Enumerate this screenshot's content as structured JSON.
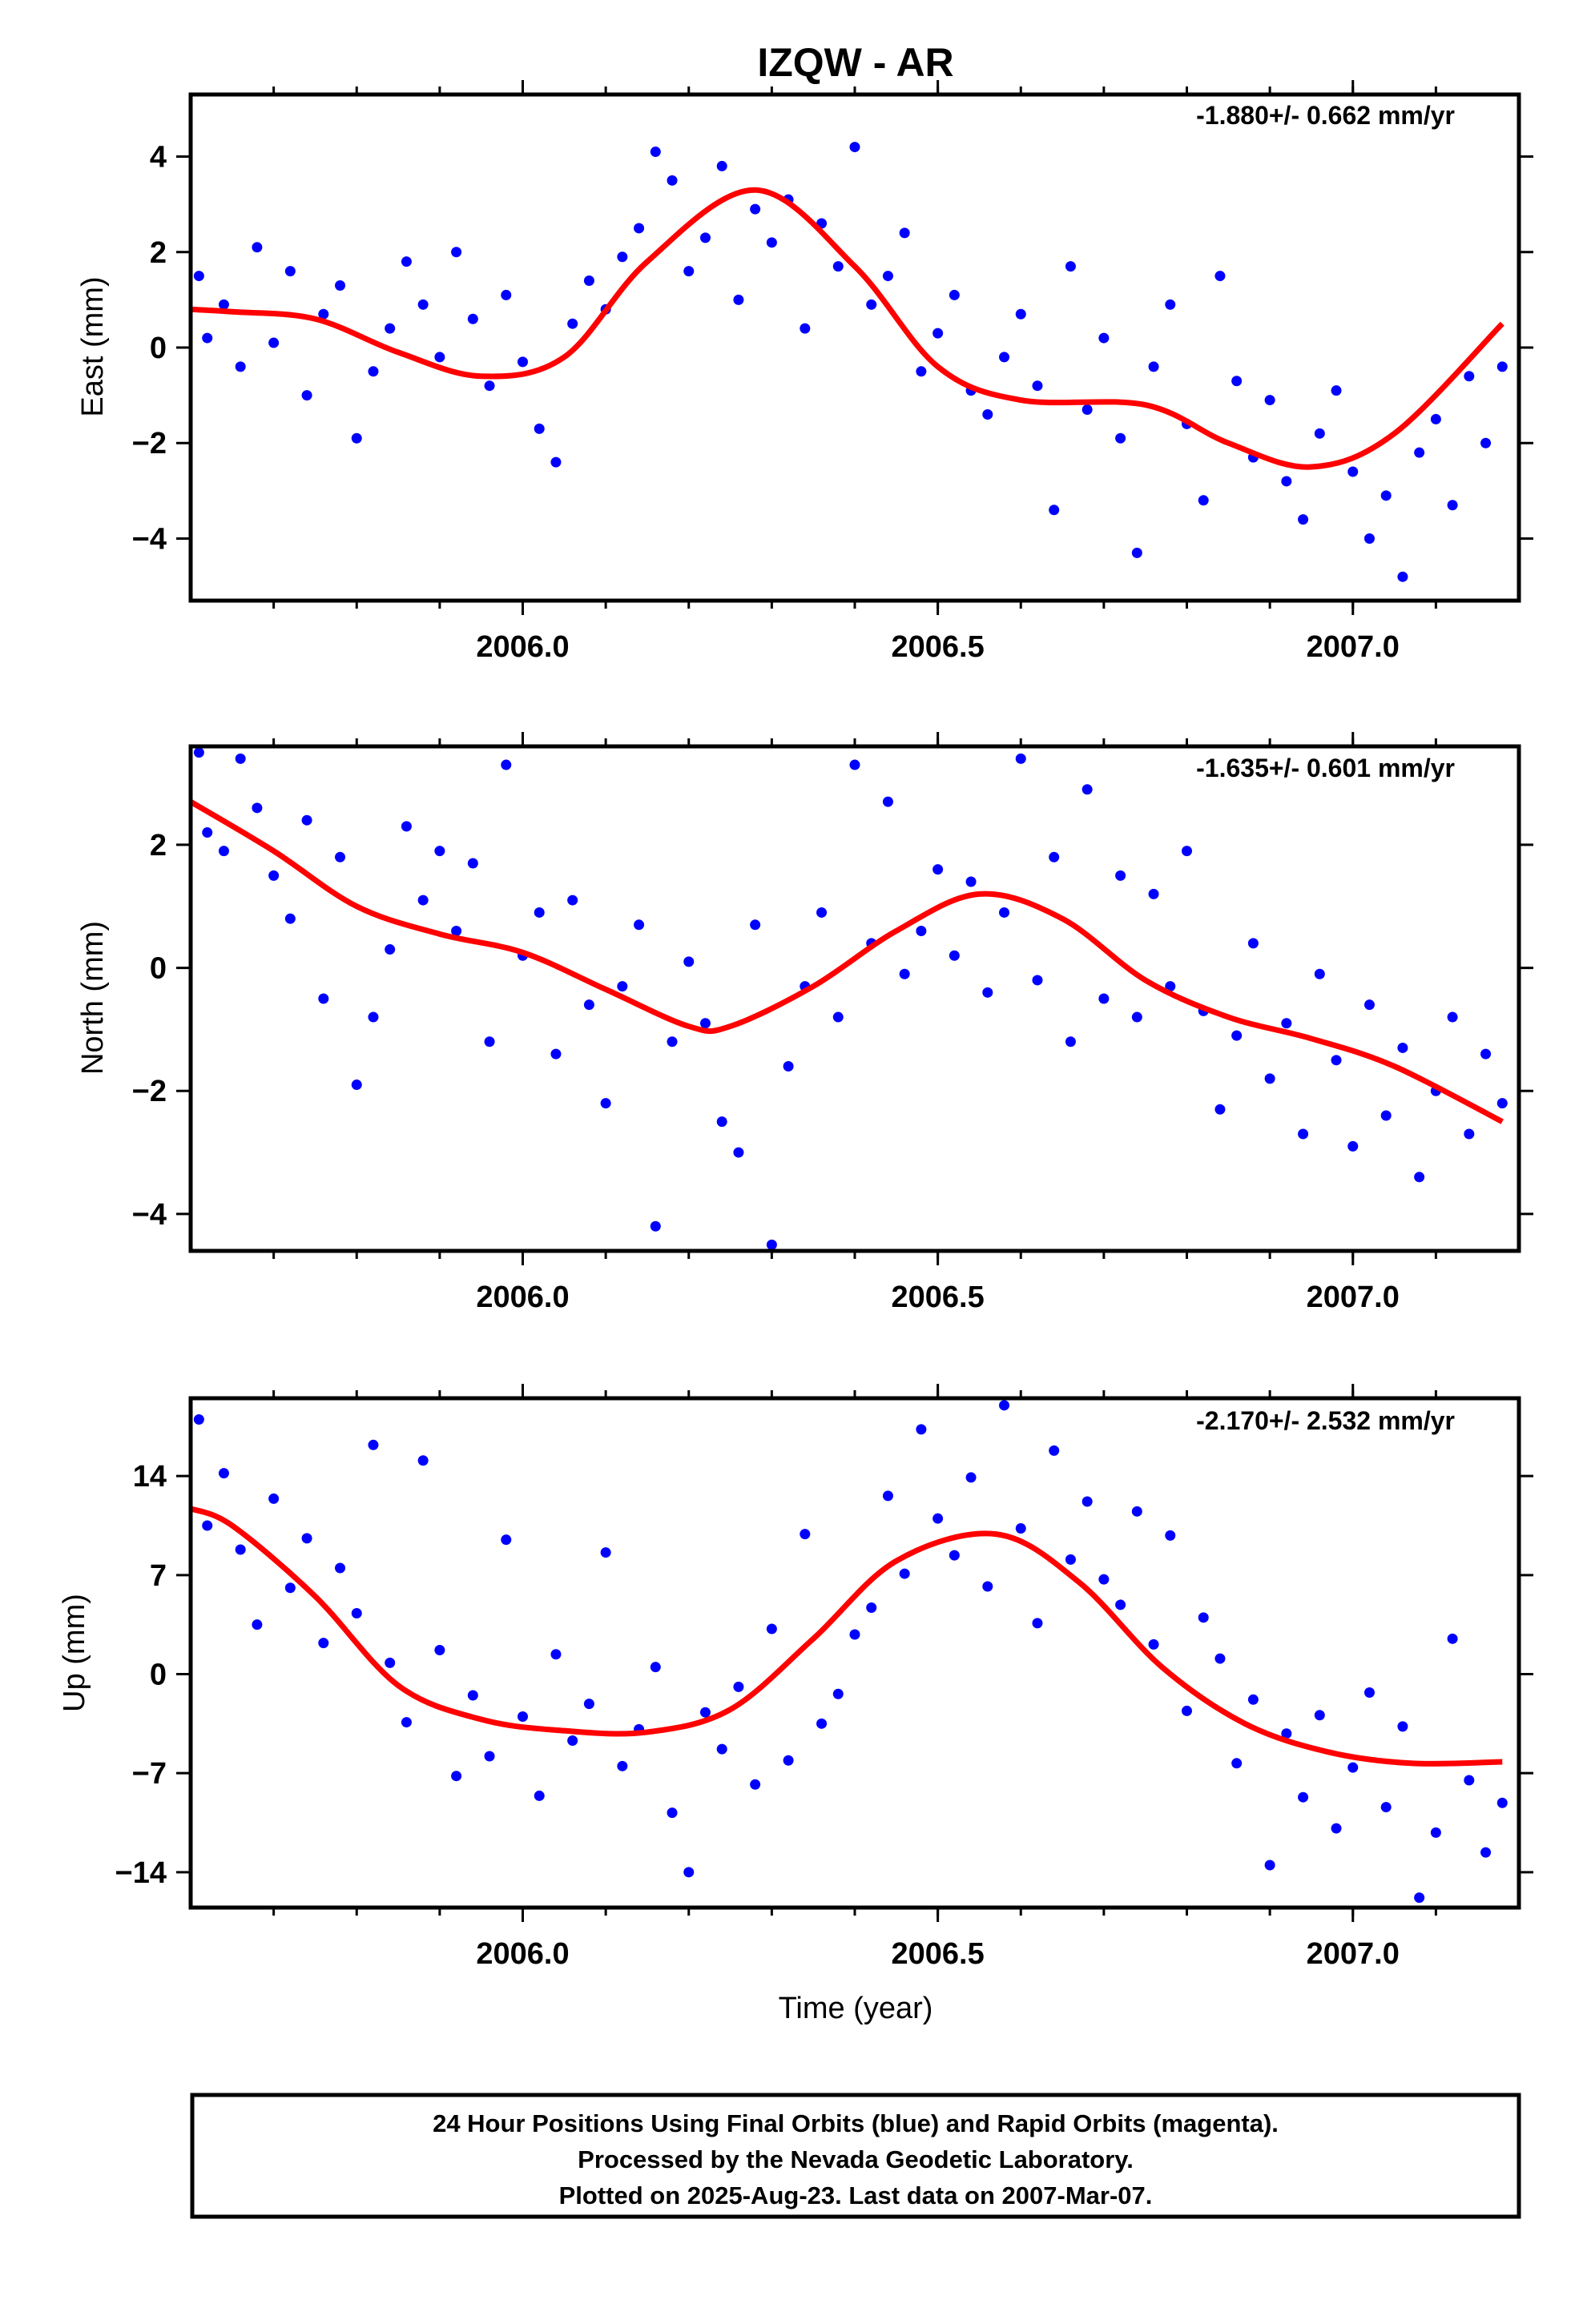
{
  "title": "IZQW - AR",
  "colors": {
    "points": "#0000ff",
    "fit": "#ff0000",
    "frame": "#000000"
  },
  "chart_data": [
    {
      "type": "scatter",
      "name": "east",
      "ylabel": "East (mm)",
      "rate_label": "-1.880+/- 0.662 mm/yr",
      "xlim": [
        2005.6,
        2007.2
      ],
      "ylim": [
        -5.3,
        5.3
      ],
      "xticks": [
        "2006.0",
        "2006.5",
        "2007.0"
      ],
      "xtick_values": [
        2006.0,
        2006.5,
        2007.0
      ],
      "yticks": [
        4,
        2,
        0,
        -2,
        -4
      ],
      "ytick_labels": [
        "4",
        "2",
        "0",
        "−2",
        "−4"
      ],
      "fit": {
        "x": [
          2005.6,
          2005.65,
          2005.75,
          2005.85,
          2005.95,
          2006.05,
          2006.15,
          2006.28,
          2006.4,
          2006.5,
          2006.6,
          2006.75,
          2006.85,
          2006.95,
          2007.05,
          2007.18
        ],
        "y": [
          0.8,
          0.75,
          0.6,
          -0.1,
          -0.6,
          -0.2,
          1.8,
          3.3,
          1.7,
          -0.4,
          -1.1,
          -1.2,
          -2.0,
          -2.5,
          -1.8,
          0.5
        ]
      },
      "points": {
        "x": [
          2005.61,
          2005.62,
          2005.64,
          2005.66,
          2005.68,
          2005.7,
          2005.72,
          2005.74,
          2005.76,
          2005.78,
          2005.8,
          2005.82,
          2005.84,
          2005.86,
          2005.88,
          2005.9,
          2005.92,
          2005.94,
          2005.96,
          2005.98,
          2006.0,
          2006.02,
          2006.04,
          2006.06,
          2006.08,
          2006.1,
          2006.12,
          2006.14,
          2006.16,
          2006.18,
          2006.2,
          2006.22,
          2006.24,
          2006.26,
          2006.28,
          2006.3,
          2006.32,
          2006.34,
          2006.36,
          2006.38,
          2006.4,
          2006.42,
          2006.44,
          2006.46,
          2006.48,
          2006.5,
          2006.52,
          2006.54,
          2006.56,
          2006.58,
          2006.6,
          2006.62,
          2006.64,
          2006.66,
          2006.68,
          2006.7,
          2006.72,
          2006.74,
          2006.76,
          2006.78,
          2006.8,
          2006.82,
          2006.84,
          2006.86,
          2006.88,
          2006.9,
          2006.92,
          2006.94,
          2006.96,
          2006.98,
          2007.0,
          2007.02,
          2007.04,
          2007.06,
          2007.08,
          2007.1,
          2007.12,
          2007.14,
          2007.16,
          2007.18
        ],
        "y": [
          1.5,
          0.2,
          0.9,
          -0.4,
          2.1,
          0.1,
          1.6,
          -1.0,
          0.7,
          1.3,
          -1.9,
          -0.5,
          0.4,
          1.8,
          0.9,
          -0.2,
          2.0,
          0.6,
          -0.8,
          1.1,
          -0.3,
          -1.7,
          -2.4,
          0.5,
          1.4,
          0.8,
          1.9,
          2.5,
          4.1,
          3.5,
          1.6,
          2.3,
          3.8,
          1.0,
          2.9,
          2.2,
          3.1,
          0.4,
          2.6,
          1.7,
          4.2,
          0.9,
          1.5,
          2.4,
          -0.5,
          0.3,
          1.1,
          -0.9,
          -1.4,
          -0.2,
          0.7,
          -0.8,
          -3.4,
          1.7,
          -1.3,
          0.2,
          -1.9,
          -4.3,
          -0.4,
          0.9,
          -1.6,
          -3.2,
          1.5,
          -0.7,
          -2.3,
          -1.1,
          -2.8,
          -3.6,
          -1.8,
          -0.9,
          -2.6,
          -4.0,
          -3.1,
          -4.8,
          -2.2,
          -1.5,
          -3.3,
          -0.6,
          -2.0,
          -0.4
        ]
      }
    },
    {
      "type": "scatter",
      "name": "north",
      "ylabel": "North (mm)",
      "rate_label": "-1.635+/- 0.601 mm/yr",
      "xlim": [
        2005.6,
        2007.2
      ],
      "ylim": [
        -4.6,
        3.6
      ],
      "xticks": [
        "2006.0",
        "2006.5",
        "2007.0"
      ],
      "xtick_values": [
        2006.0,
        2006.5,
        2007.0
      ],
      "yticks": [
        2,
        0,
        -2,
        -4
      ],
      "ytick_labels": [
        "2",
        "0",
        "−2",
        "−4"
      ],
      "fit": {
        "x": [
          2005.6,
          2005.7,
          2005.8,
          2005.9,
          2006.0,
          2006.1,
          2006.2,
          2006.25,
          2006.35,
          2006.45,
          2006.55,
          2006.65,
          2006.75,
          2006.85,
          2006.95,
          2007.05,
          2007.18
        ],
        "y": [
          2.7,
          1.9,
          1.0,
          0.55,
          0.25,
          -0.35,
          -0.95,
          -0.95,
          -0.3,
          0.6,
          1.2,
          0.8,
          -0.2,
          -0.8,
          -1.15,
          -1.6,
          -2.5
        ]
      },
      "points": {
        "x": [
          2005.61,
          2005.62,
          2005.64,
          2005.66,
          2005.68,
          2005.7,
          2005.72,
          2005.74,
          2005.76,
          2005.78,
          2005.8,
          2005.82,
          2005.84,
          2005.86,
          2005.88,
          2005.9,
          2005.92,
          2005.94,
          2005.96,
          2005.98,
          2006.0,
          2006.02,
          2006.04,
          2006.06,
          2006.08,
          2006.1,
          2006.12,
          2006.14,
          2006.16,
          2006.18,
          2006.2,
          2006.22,
          2006.24,
          2006.26,
          2006.28,
          2006.3,
          2006.32,
          2006.34,
          2006.36,
          2006.38,
          2006.4,
          2006.42,
          2006.44,
          2006.46,
          2006.48,
          2006.5,
          2006.52,
          2006.54,
          2006.56,
          2006.58,
          2006.6,
          2006.62,
          2006.64,
          2006.66,
          2006.68,
          2006.7,
          2006.72,
          2006.74,
          2006.76,
          2006.78,
          2006.8,
          2006.82,
          2006.84,
          2006.86,
          2006.88,
          2006.9,
          2006.92,
          2006.94,
          2006.96,
          2006.98,
          2007.0,
          2007.02,
          2007.04,
          2007.06,
          2007.08,
          2007.1,
          2007.12,
          2007.14,
          2007.16,
          2007.18
        ],
        "y": [
          3.5,
          2.2,
          1.9,
          3.4,
          2.6,
          1.5,
          0.8,
          2.4,
          -0.5,
          1.8,
          -1.9,
          -0.8,
          0.3,
          2.3,
          1.1,
          1.9,
          0.6,
          1.7,
          -1.2,
          3.3,
          0.2,
          0.9,
          -1.4,
          1.1,
          -0.6,
          -2.2,
          -0.3,
          0.7,
          -4.2,
          -1.2,
          0.1,
          -0.9,
          -2.5,
          -3.0,
          0.7,
          -4.5,
          -1.6,
          -0.3,
          0.9,
          -0.8,
          3.3,
          0.4,
          2.7,
          -0.1,
          0.6,
          1.6,
          0.2,
          1.4,
          -0.4,
          0.9,
          3.4,
          -0.2,
          1.8,
          -1.2,
          2.9,
          -0.5,
          1.5,
          -0.8,
          1.2,
          -0.3,
          1.9,
          -0.7,
          -2.3,
          -1.1,
          0.4,
          -1.8,
          -0.9,
          -2.7,
          -0.1,
          -1.5,
          -2.9,
          -0.6,
          -2.4,
          -1.3,
          -3.4,
          -2.0,
          -0.8,
          -2.7,
          -1.4,
          -2.2
        ]
      }
    },
    {
      "type": "scatter",
      "name": "up",
      "ylabel": "Up (mm)",
      "xlabel": "Time (year)",
      "rate_label": "-2.170+/- 2.532 mm/yr",
      "xlim": [
        2005.6,
        2007.2
      ],
      "ylim": [
        -16.5,
        19.5
      ],
      "xticks": [
        "2006.0",
        "2006.5",
        "2007.0"
      ],
      "xtick_values": [
        2006.0,
        2006.5,
        2007.0
      ],
      "yticks": [
        14,
        7,
        0,
        -7,
        -14
      ],
      "ytick_labels": [
        "14",
        "7",
        "0",
        "−7",
        "−14"
      ],
      "fit": {
        "x": [
          2005.6,
          2005.65,
          2005.75,
          2005.85,
          2005.95,
          2006.05,
          2006.15,
          2006.25,
          2006.35,
          2006.45,
          2006.57,
          2006.67,
          2006.77,
          2006.87,
          2006.97,
          2007.07,
          2007.18
        ],
        "y": [
          11.7,
          10.5,
          5.5,
          -0.8,
          -3.2,
          -4.0,
          -4.1,
          -2.5,
          2.5,
          8.0,
          9.9,
          6.5,
          0.5,
          -3.5,
          -5.5,
          -6.3,
          -6.2
        ]
      },
      "points": {
        "x": [
          2005.61,
          2005.62,
          2005.64,
          2005.66,
          2005.68,
          2005.7,
          2005.72,
          2005.74,
          2005.76,
          2005.78,
          2005.8,
          2005.82,
          2005.84,
          2005.86,
          2005.88,
          2005.9,
          2005.92,
          2005.94,
          2005.96,
          2005.98,
          2006.0,
          2006.02,
          2006.04,
          2006.06,
          2006.08,
          2006.1,
          2006.12,
          2006.14,
          2006.16,
          2006.18,
          2006.2,
          2006.22,
          2006.24,
          2006.26,
          2006.28,
          2006.3,
          2006.32,
          2006.34,
          2006.36,
          2006.38,
          2006.4,
          2006.42,
          2006.44,
          2006.46,
          2006.48,
          2006.5,
          2006.52,
          2006.54,
          2006.56,
          2006.58,
          2006.6,
          2006.62,
          2006.64,
          2006.66,
          2006.68,
          2006.7,
          2006.72,
          2006.74,
          2006.76,
          2006.78,
          2006.8,
          2006.82,
          2006.84,
          2006.86,
          2006.88,
          2006.9,
          2006.92,
          2006.94,
          2006.96,
          2006.98,
          2007.0,
          2007.02,
          2007.04,
          2007.06,
          2007.08,
          2007.1,
          2007.12,
          2007.14,
          2007.16,
          2007.18
        ],
        "y": [
          18.0,
          10.5,
          14.2,
          8.8,
          3.5,
          12.4,
          6.1,
          9.6,
          2.2,
          7.5,
          4.3,
          16.2,
          0.8,
          -3.4,
          15.1,
          1.7,
          -7.2,
          -1.5,
          -5.8,
          9.5,
          -3.0,
          -8.6,
          1.4,
          -4.7,
          -2.1,
          8.6,
          -6.5,
          -3.9,
          0.5,
          -9.8,
          -14.0,
          -2.7,
          -5.3,
          -0.9,
          -7.8,
          3.2,
          -6.1,
          9.9,
          -3.5,
          -1.4,
          2.8,
          4.7,
          12.6,
          7.1,
          17.3,
          11.0,
          8.4,
          13.9,
          6.2,
          19.0,
          10.3,
          3.6,
          15.8,
          8.1,
          12.2,
          6.7,
          4.9,
          11.5,
          2.1,
          9.8,
          -2.6,
          4.0,
          1.1,
          -6.3,
          -1.8,
          -13.5,
          -4.2,
          -8.7,
          -2.9,
          -10.9,
          -6.6,
          -1.3,
          -9.4,
          -3.7,
          -15.8,
          -11.2,
          2.5,
          -7.5,
          -12.6,
          -9.1
        ]
      }
    }
  ],
  "footer": {
    "line1": "24 Hour Positions Using Final Orbits (blue) and Rapid Orbits (magenta).",
    "line2": "Processed by the Nevada Geodetic Laboratory.",
    "line3": "Plotted on 2025-Aug-23. Last data on 2007-Mar-07."
  }
}
